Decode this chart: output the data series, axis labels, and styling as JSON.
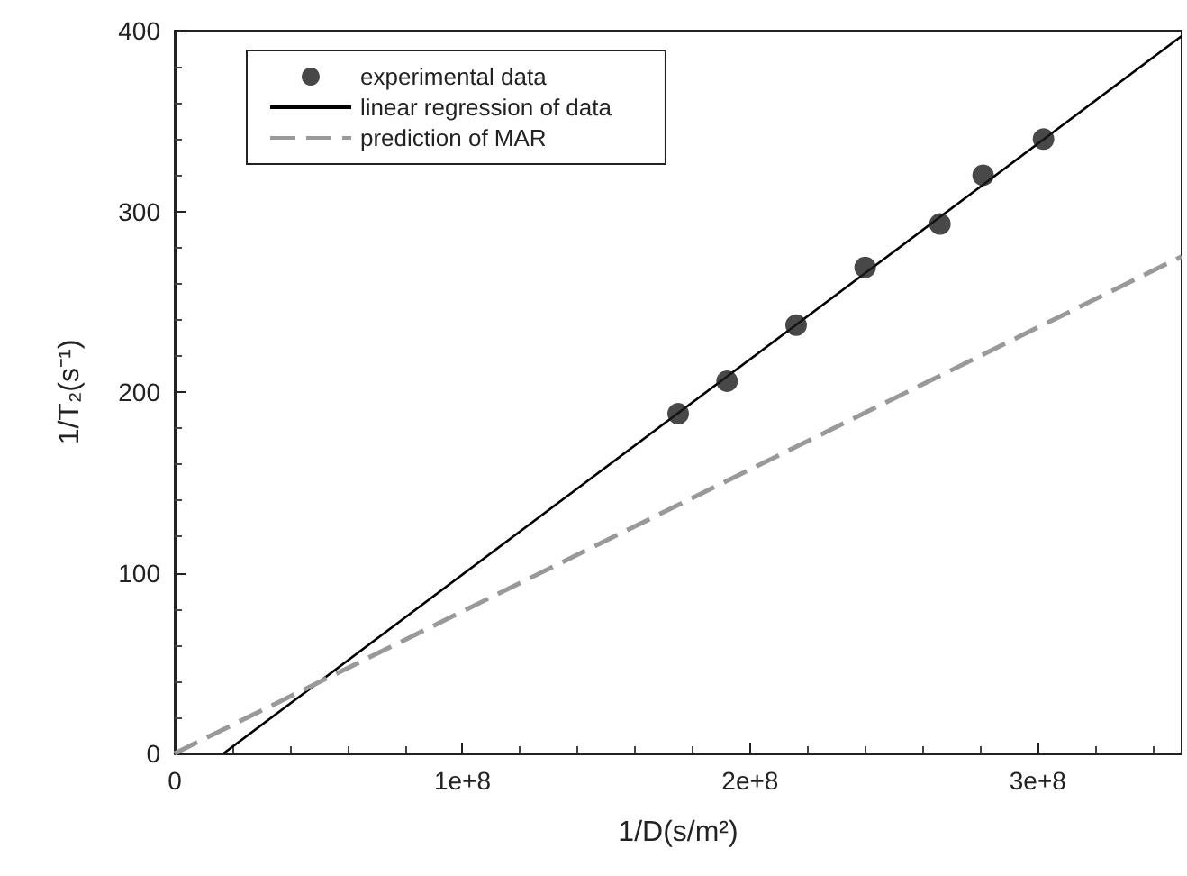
{
  "chart_data": {
    "type": "scatter",
    "xlabel": "1/D(s/m²)",
    "ylabel": "1/T₂(s⁻¹)",
    "xlim": [
      0,
      350000000
    ],
    "xticks": [
      0,
      {
        "value": 100000000,
        "label": "1e+8"
      },
      {
        "value": 200000000,
        "label": "2e+8"
      },
      {
        "value": 300000000,
        "label": "3e+8"
      }
    ],
    "ylim": [
      0,
      400
    ],
    "yticks": [
      0,
      100,
      200,
      300,
      400
    ],
    "grid": false,
    "legend": "top left",
    "series": [
      {
        "name": "experimental data",
        "marker": "circle",
        "color": "#1a1a1a",
        "x": [
          175000000,
          192000000,
          216000000,
          240000000,
          266000000,
          281000000,
          302000000
        ],
        "values": [
          188,
          206,
          237,
          269,
          293,
          320,
          340
        ]
      },
      {
        "name": "linear regression of data",
        "type": "line",
        "marker": "none",
        "line_style": "solid",
        "color": "#000000",
        "x": [
          17000000,
          350000000
        ],
        "values": [
          0,
          397
        ]
      },
      {
        "name": "prediction of MAR",
        "type": "line",
        "marker": "none",
        "line_style": "dashed",
        "color": "#999999",
        "x": [
          0,
          350000000
        ],
        "values": [
          0,
          275
        ]
      }
    ]
  }
}
